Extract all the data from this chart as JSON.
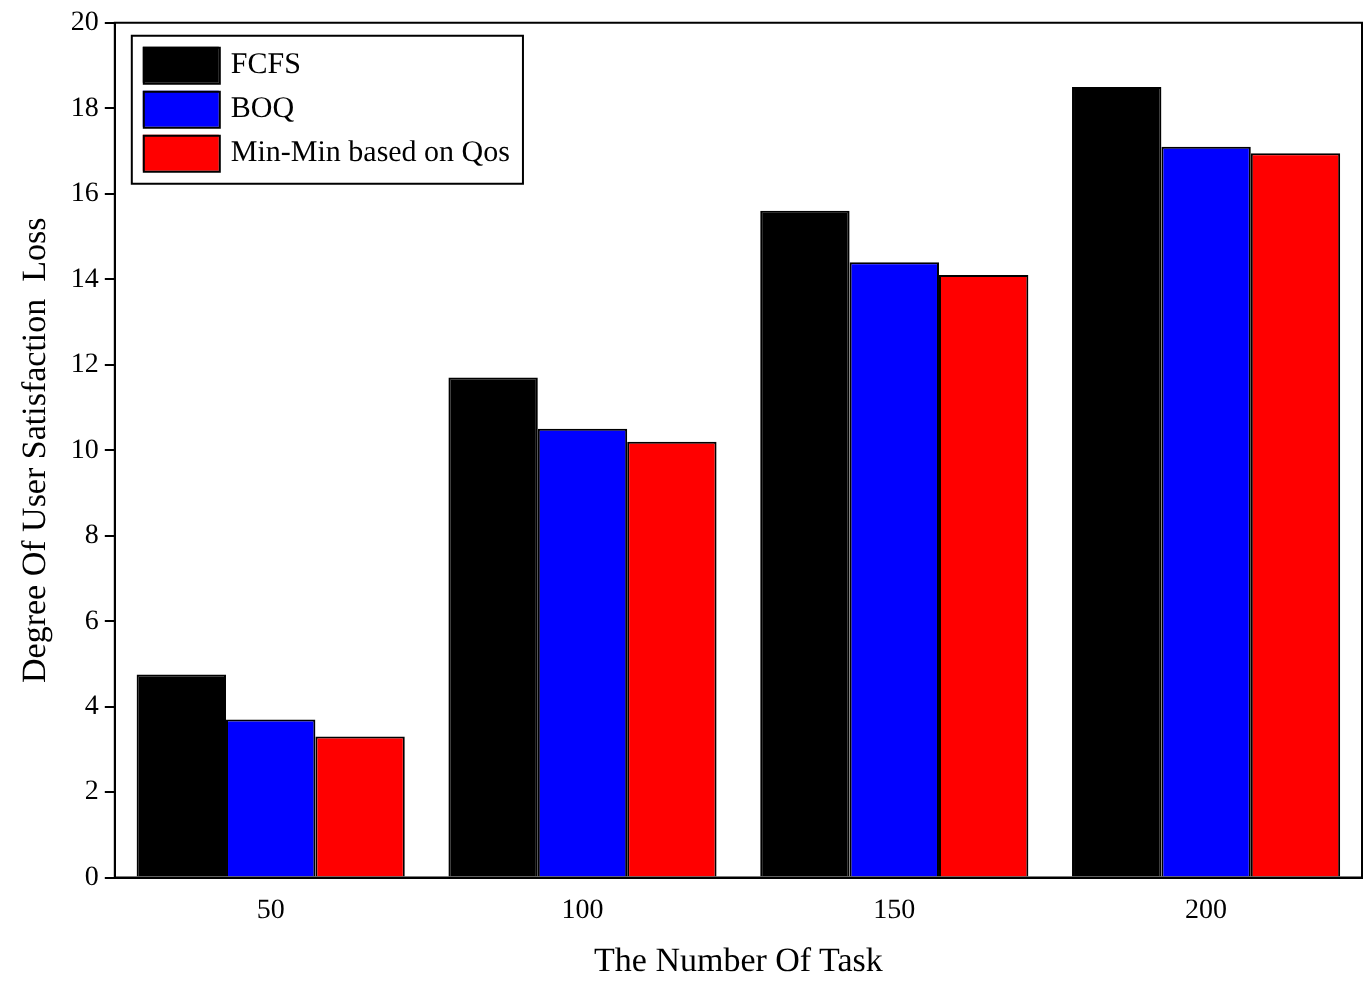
{
  "chart_data": {
    "type": "bar",
    "xlabel": "The Number Of Task",
    "ylabel": "Degree Of User Satisfaction  Loss",
    "categories": [
      "50",
      "100",
      "150",
      "200"
    ],
    "series": [
      {
        "name": "FCFS",
        "color": "#000000",
        "values": [
          4.75,
          11.7,
          15.6,
          18.5
        ]
      },
      {
        "name": "BOQ",
        "color": "#0000ff",
        "values": [
          3.7,
          10.5,
          14.4,
          17.1
        ]
      },
      {
        "name": "Min-Min based on Qos",
        "color": "#ff0000",
        "values": [
          3.3,
          10.2,
          14.1,
          16.95
        ]
      }
    ],
    "ylim": [
      0,
      20
    ],
    "yticks": [
      0,
      2,
      4,
      6,
      8,
      10,
      12,
      14,
      16,
      18,
      20
    ],
    "grid": false,
    "legend": "top left"
  }
}
